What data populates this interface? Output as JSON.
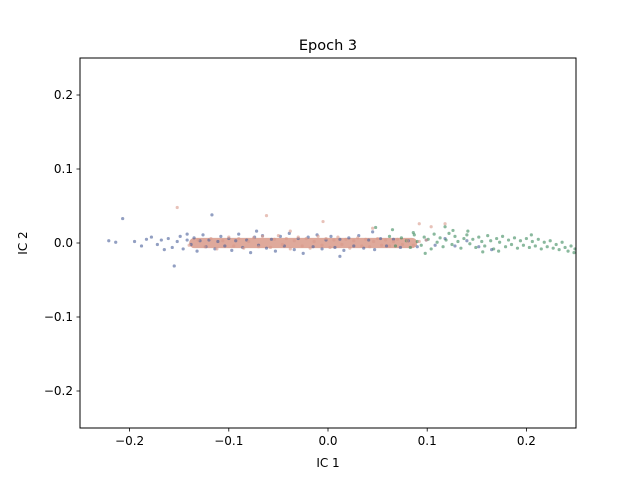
{
  "chart_data": {
    "type": "scatter",
    "title": "Epoch 3",
    "xlabel": "IC 1",
    "ylabel": "IC 2",
    "xlim": [
      -0.25,
      0.25
    ],
    "ylim": [
      -0.25,
      0.25
    ],
    "xticks": [
      -0.2,
      -0.1,
      0.0,
      0.1,
      0.2
    ],
    "xtick_labels": [
      "−0.2",
      "−0.1",
      "0.0",
      "0.1",
      "0.2"
    ],
    "yticks": [
      -0.2,
      -0.1,
      0.0,
      0.1,
      0.2
    ],
    "ytick_labels": [
      "−0.2",
      "−0.1",
      "0.0",
      "0.1",
      "0.2"
    ],
    "grid": false,
    "legend": "none",
    "series": [
      {
        "color": "#4a5f9a",
        "points": [
          [
            -0.221,
            0.003
          ],
          [
            -0.214,
            0.001
          ],
          [
            -0.207,
            0.033
          ],
          [
            -0.195,
            0.002
          ],
          [
            -0.188,
            -0.004
          ],
          [
            -0.183,
            0.005
          ],
          [
            -0.178,
            0.008
          ],
          [
            -0.172,
            -0.002
          ],
          [
            -0.168,
            0.004
          ],
          [
            -0.165,
            -0.009
          ],
          [
            -0.161,
            0.006
          ],
          [
            -0.157,
            -0.006
          ],
          [
            -0.155,
            -0.031
          ],
          [
            -0.152,
            0.002
          ],
          [
            -0.149,
            0.009
          ],
          [
            -0.146,
            -0.008
          ],
          [
            -0.142,
            0.004
          ],
          [
            -0.138,
            -0.002
          ],
          [
            -0.135,
            0.007
          ],
          [
            -0.132,
            -0.011
          ],
          [
            -0.129,
            0.003
          ],
          [
            -0.126,
            0.011
          ],
          [
            -0.123,
            -0.005
          ],
          [
            -0.12,
            0.004
          ],
          [
            -0.117,
            0.038
          ],
          [
            -0.114,
            -0.008
          ],
          [
            -0.111,
            0.002
          ],
          [
            -0.108,
            0.009
          ],
          [
            -0.104,
            -0.004
          ],
          [
            -0.1,
            0.006
          ],
          [
            -0.097,
            -0.01
          ],
          [
            -0.093,
            0.003
          ],
          [
            -0.09,
            0.012
          ],
          [
            -0.086,
            -0.006
          ],
          [
            -0.082,
            0.004
          ],
          [
            -0.078,
            -0.013
          ],
          [
            -0.074,
            0.008
          ],
          [
            -0.07,
            -0.003
          ],
          [
            -0.066,
            0.01
          ],
          [
            -0.062,
            -0.007
          ],
          [
            -0.057,
            0.005
          ],
          [
            -0.053,
            -0.011
          ],
          [
            -0.048,
            0.009
          ],
          [
            -0.044,
            -0.004
          ],
          [
            -0.039,
            0.013
          ],
          [
            -0.034,
            -0.009
          ],
          [
            -0.03,
            0.006
          ],
          [
            -0.025,
            -0.014
          ],
          [
            -0.02,
            0.008
          ],
          [
            -0.015,
            -0.005
          ],
          [
            -0.011,
            0.011
          ],
          [
            -0.006,
            -0.008
          ],
          [
            -0.002,
            0.004
          ],
          [
            0.003,
            0.009
          ],
          [
            0.007,
            -0.006
          ],
          [
            0.012,
            0.005
          ],
          [
            0.016,
            -0.01
          ],
          [
            0.021,
            0.007
          ],
          [
            0.026,
            -0.004
          ],
          [
            0.031,
            0.01
          ],
          [
            0.036,
            -0.007
          ],
          [
            0.041,
            0.004
          ],
          [
            0.047,
            -0.009
          ],
          [
            0.053,
            0.006
          ],
          [
            0.059,
            -0.004
          ],
          [
            0.066,
            0.005
          ],
          [
            0.073,
            -0.006
          ],
          [
            0.081,
            0.003
          ],
          [
            0.09,
            -0.005
          ],
          [
            0.099,
            0.004
          ],
          [
            0.108,
            -0.003
          ],
          [
            0.118,
            0.006
          ],
          [
            0.128,
            -0.004
          ],
          [
            0.14,
            0.003
          ],
          [
            0.152,
            -0.005
          ],
          [
            0.165,
            -0.009
          ],
          [
            0.012,
            -0.018
          ],
          [
            -0.072,
            0.016
          ],
          [
            0.045,
            0.015
          ],
          [
            -0.142,
            0.012
          ]
        ]
      },
      {
        "color": "#3c8a5e",
        "points": [
          [
            0.062,
            0.009
          ],
          [
            0.068,
            -0.004
          ],
          [
            0.074,
            0.007
          ],
          [
            0.079,
            0.003
          ],
          [
            0.083,
            -0.006
          ],
          [
            0.087,
            0.011
          ],
          [
            0.09,
            0.002
          ],
          [
            0.094,
            -0.003
          ],
          [
            0.097,
            0.008
          ],
          [
            0.101,
            0.005
          ],
          [
            0.104,
            -0.008
          ],
          [
            0.107,
            0.012
          ],
          [
            0.11,
            0.001
          ],
          [
            0.113,
            0.007
          ],
          [
            0.116,
            -0.005
          ],
          [
            0.119,
            0.004
          ],
          [
            0.122,
            0.013
          ],
          [
            0.125,
            -0.002
          ],
          [
            0.128,
            0.009
          ],
          [
            0.131,
            0.002
          ],
          [
            0.134,
            -0.007
          ],
          [
            0.137,
            0.006
          ],
          [
            0.14,
            0.011
          ],
          [
            0.143,
            -0.001
          ],
          [
            0.146,
            0.005
          ],
          [
            0.149,
            -0.006
          ],
          [
            0.152,
            0.008
          ],
          [
            0.155,
            0.002
          ],
          [
            0.158,
            -0.004
          ],
          [
            0.161,
            0.01
          ],
          [
            0.164,
            0.003
          ],
          [
            0.167,
            -0.008
          ],
          [
            0.17,
            0.006
          ],
          [
            0.173,
            0.001
          ],
          [
            0.176,
            0.009
          ],
          [
            0.179,
            -0.005
          ],
          [
            0.182,
            0.004
          ],
          [
            0.185,
            -0.002
          ],
          [
            0.188,
            0.007
          ],
          [
            0.191,
            -0.007
          ],
          [
            0.194,
            0.003
          ],
          [
            0.197,
            -0.003
          ],
          [
            0.2,
            0.006
          ],
          [
            0.203,
            -0.006
          ],
          [
            0.206,
            0.002
          ],
          [
            0.209,
            -0.004
          ],
          [
            0.212,
            0.005
          ],
          [
            0.215,
            -0.008
          ],
          [
            0.218,
            0.001
          ],
          [
            0.221,
            -0.005
          ],
          [
            0.224,
            0.003
          ],
          [
            0.227,
            -0.007
          ],
          [
            0.23,
            -0.002
          ],
          [
            0.233,
            -0.009
          ],
          [
            0.236,
            0.001
          ],
          [
            0.239,
            -0.006
          ],
          [
            0.242,
            -0.011
          ],
          [
            0.245,
            -0.004
          ],
          [
            0.248,
            -0.013
          ],
          [
            0.249,
            -0.008
          ],
          [
            0.048,
            0.021
          ],
          [
            0.065,
            0.018
          ],
          [
            0.118,
            0.022
          ],
          [
            0.098,
            -0.014
          ],
          [
            0.172,
            -0.011
          ],
          [
            0.141,
            0.016
          ],
          [
            0.086,
            0.014
          ],
          [
            0.205,
            0.011
          ],
          [
            0.156,
            -0.012
          ],
          [
            0.126,
            0.017
          ]
        ]
      },
      {
        "color": "#d99a8a",
        "points": [
          [
            -0.152,
            0.048
          ],
          [
            -0.14,
            -0.003
          ],
          [
            -0.131,
            0.004
          ],
          [
            -0.124,
            -0.005
          ],
          [
            -0.118,
            0.006
          ],
          [
            -0.112,
            -0.008
          ],
          [
            -0.106,
            0.003
          ],
          [
            -0.1,
            0.008
          ],
          [
            -0.095,
            -0.004
          ],
          [
            -0.09,
            0.006
          ],
          [
            -0.085,
            -0.007
          ],
          [
            -0.08,
            0.002
          ],
          [
            -0.075,
            0.007
          ],
          [
            -0.07,
            -0.005
          ],
          [
            -0.066,
            0.009
          ],
          [
            -0.062,
            0.037
          ],
          [
            -0.058,
            -0.006
          ],
          [
            -0.054,
            0.005
          ],
          [
            -0.05,
            0.01
          ],
          [
            -0.046,
            -0.002
          ],
          [
            -0.042,
            0.006
          ],
          [
            -0.038,
            -0.008
          ],
          [
            -0.034,
            0.003
          ],
          [
            -0.03,
            0.008
          ],
          [
            -0.026,
            -0.004
          ],
          [
            -0.022,
            0.006
          ],
          [
            -0.018,
            -0.007
          ],
          [
            -0.014,
            0.002
          ],
          [
            -0.01,
            0.009
          ],
          [
            -0.006,
            -0.003
          ],
          [
            -0.002,
            0.006
          ],
          [
            0.002,
            -0.006
          ],
          [
            0.006,
            0.004
          ],
          [
            0.01,
            0.008
          ],
          [
            0.014,
            -0.002
          ],
          [
            0.018,
            0.005
          ],
          [
            0.022,
            -0.007
          ],
          [
            0.026,
            0.003
          ],
          [
            0.03,
            0.007
          ],
          [
            0.034,
            -0.004
          ],
          [
            0.038,
            0.005
          ],
          [
            0.042,
            -0.005
          ],
          [
            0.046,
            0.002
          ],
          [
            0.05,
            0.006
          ],
          [
            0.054,
            -0.003
          ],
          [
            0.058,
            0.004
          ],
          [
            0.062,
            -0.004
          ],
          [
            0.066,
            0.002
          ],
          [
            0.07,
            0.005
          ],
          [
            0.075,
            -0.002
          ],
          [
            0.08,
            0.003
          ],
          [
            0.086,
            -0.003
          ],
          [
            0.092,
            0.002
          ],
          [
            0.099,
            0.004
          ],
          [
            0.045,
            0.02
          ],
          [
            0.092,
            0.026
          ],
          [
            -0.038,
            0.016
          ],
          [
            0.104,
            0.022
          ],
          [
            0.118,
            0.026
          ],
          [
            -0.005,
            0.029
          ]
        ]
      }
    ],
    "dense_band": {
      "color": "#d99a8a",
      "x_range": [
        -0.14,
        0.09
      ],
      "y_center": 0.0,
      "y_halfwidth": 0.007
    }
  }
}
